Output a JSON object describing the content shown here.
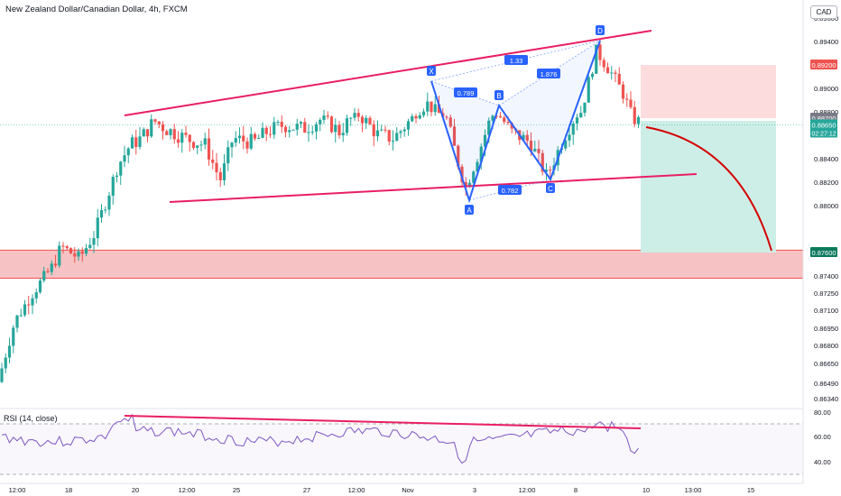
{
  "header": {
    "title": "New Zealand Dollar/Canadian Dollar, 4h, FXCM",
    "currency": "CAD",
    "rsi_label": "RSI (14, close)"
  },
  "colors": {
    "bull": "#26a69a",
    "bear": "#ef5350",
    "trendline": "#e91e63",
    "harmonic": "#2962ff",
    "rsi": "#7e57c2",
    "support_zone": "#f5b7b9",
    "target_zone": "#cdeee7",
    "stop_zone": "#fcdcdc",
    "projection": "#d50000"
  },
  "chart_data": [
    {
      "type": "candlestick",
      "symbol": "New Zealand Dollar/Canadian Dollar",
      "timeframe": "4h",
      "source": "FXCM",
      "y_ticks": [
        "0.89600",
        "0.89400",
        "0.89000",
        "0.88800",
        "0.88400",
        "0.88200",
        "0.88000",
        "0.87400",
        "0.87250",
        "0.87100",
        "0.86950",
        "0.86800",
        "0.86650",
        "0.86490",
        "0.86340"
      ],
      "x_ticks": [
        "12:00",
        "18",
        "20",
        "12:00",
        "25",
        "27",
        "12:00",
        "Nov",
        "3",
        "12:00",
        "8",
        "10",
        "13:00",
        "15"
      ],
      "price_labels": [
        {
          "value": "0.89200",
          "kind": "stop"
        },
        {
          "value": "0.88700",
          "kind": "entry"
        },
        {
          "value": "0.88650",
          "kind": "last",
          "countdown": "02:27:12"
        },
        {
          "value": "0.87600",
          "kind": "target"
        }
      ],
      "harmonic_pattern": {
        "points": [
          "X",
          "A",
          "B",
          "C",
          "D"
        ],
        "ratios": [
          "0.789",
          "0.782",
          "1.33",
          "1.876"
        ]
      },
      "zones": [
        {
          "name": "support",
          "range": [
            0.8738,
            0.8762
          ]
        },
        {
          "name": "stop",
          "range": [
            0.887,
            0.892
          ]
        },
        {
          "name": "target",
          "range": [
            0.876,
            0.8868
          ]
        }
      ]
    },
    {
      "type": "line",
      "indicator": "RSI (14, close)",
      "y_ticks": [
        "80.00",
        "60.00",
        "40.00"
      ],
      "bands": [
        70,
        30
      ]
    }
  ]
}
